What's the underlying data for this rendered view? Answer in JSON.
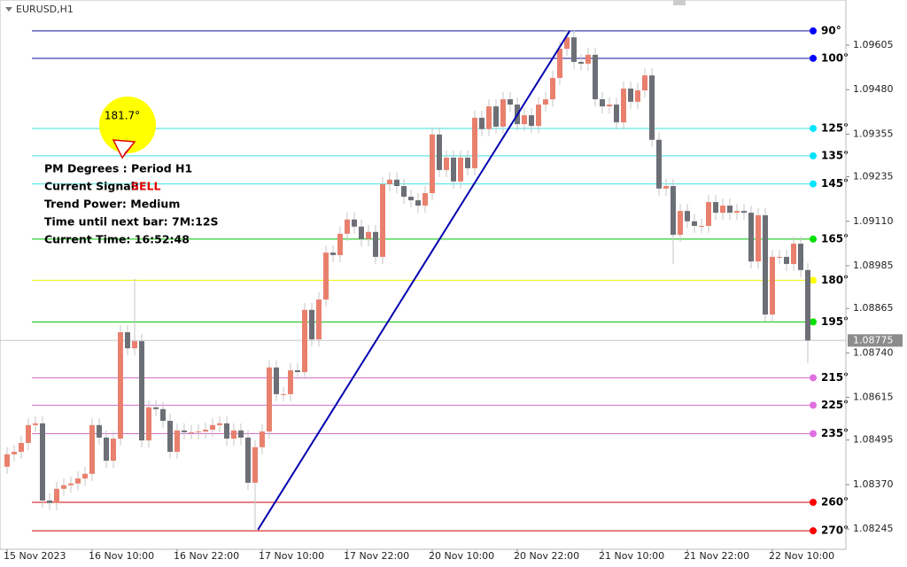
{
  "chart_data": {
    "type": "candlestick",
    "symbol": "EURUSD,H1",
    "categories": [
      "15 Nov 2023",
      null,
      null,
      null,
      null,
      null,
      null,
      null,
      null,
      null,
      null,
      null,
      "16 Nov 10:00",
      null,
      null,
      null,
      null,
      null,
      null,
      null,
      null,
      null,
      null,
      null,
      "16 Nov 22:00",
      null,
      null,
      null,
      null,
      null,
      null,
      null,
      null,
      null,
      null,
      null,
      "17 Nov 10:00",
      null,
      null,
      null,
      null,
      null,
      null,
      null,
      null,
      null,
      null,
      null,
      "17 Nov 22:00",
      null,
      null,
      null,
      null,
      null,
      null,
      null,
      null,
      null,
      null,
      null,
      "20 Nov 10:00",
      null,
      null,
      null,
      null,
      null,
      null,
      null,
      null,
      null,
      null,
      null,
      "20 Nov 22:00",
      null,
      null,
      null,
      null,
      null,
      null,
      null,
      null,
      null,
      null,
      null,
      "21 Nov 10:00",
      null,
      null,
      null,
      null,
      null,
      null,
      null,
      null,
      null,
      null,
      null,
      "21 Nov 22:00",
      null,
      null,
      null,
      null,
      null,
      null,
      null,
      null,
      null,
      null,
      null,
      "22 Nov 10:00",
      null,
      null,
      null,
      null,
      null
    ],
    "open": [
      1.0842,
      1.08455,
      1.08462,
      1.08487,
      1.08537,
      1.08542,
      1.08325,
      1.08318,
      1.08358,
      1.08368,
      1.08373,
      1.08387,
      1.084,
      1.08537,
      1.08502,
      1.08437,
      1.08499,
      1.08798,
      1.08753,
      1.08773,
      1.08494,
      1.08587,
      1.08582,
      1.08549,
      1.08462,
      1.08522,
      1.08517,
      1.08517,
      1.08519,
      1.08524,
      1.08537,
      1.08542,
      1.08499,
      1.08522,
      1.08502,
      1.08375,
      1.08475,
      1.08519,
      1.08699,
      1.08624,
      1.08624,
      1.08691,
      1.08686,
      1.08861,
      1.08778,
      1.0889,
      1.09022,
      1.09015,
      1.09075,
      1.09115,
      1.09095,
      1.0906,
      1.0908,
      1.0901,
      1.09214,
      1.09227,
      1.09209,
      1.09179,
      1.09169,
      1.09154,
      1.09189,
      1.09354,
      1.09254,
      1.09289,
      1.09222,
      1.09289,
      1.09259,
      1.09401,
      1.09369,
      1.09433,
      1.09376,
      1.09453,
      1.09438,
      1.09383,
      1.09408,
      1.09378,
      1.09438,
      1.09453,
      1.09513,
      1.09595,
      1.09627,
      1.09558,
      1.09553,
      1.09578,
      1.09453,
      1.09433,
      1.09438,
      1.09388,
      1.09483,
      1.09446,
      1.09478,
      1.0952,
      1.09339,
      1.09202,
      1.09209,
      1.09072,
      1.09139,
      1.0911,
      1.09097,
      1.09097,
      1.09164,
      1.09134,
      1.09154,
      1.09134,
      1.09139,
      1.09134,
      1.08997,
      1.09127,
      1.08848,
      1.0901,
      1.0901,
      1.0899,
      1.09047,
      1.08973
    ],
    "high": [
      1.08475,
      1.08482,
      1.08507,
      1.08557,
      1.08562,
      1.08562,
      1.08345,
      1.08378,
      1.08388,
      1.08393,
      1.08407,
      1.0842,
      1.08557,
      1.08557,
      1.08522,
      1.08519,
      1.08818,
      1.08818,
      1.08948,
      1.08793,
      1.08607,
      1.08607,
      1.08602,
      1.08569,
      1.08542,
      1.08542,
      1.08537,
      1.08539,
      1.08544,
      1.08557,
      1.08562,
      1.08562,
      1.08542,
      1.08542,
      1.08522,
      1.08495,
      1.08539,
      1.08719,
      1.08719,
      1.08644,
      1.08711,
      1.08711,
      1.08881,
      1.08881,
      1.0891,
      1.09042,
      1.09042,
      1.09095,
      1.09135,
      1.09135,
      1.09115,
      1.091,
      1.091,
      1.09234,
      1.09247,
      1.09247,
      1.09229,
      1.09199,
      1.09189,
      1.09209,
      1.09374,
      1.09374,
      1.09309,
      1.09309,
      1.09309,
      1.09309,
      1.09421,
      1.09421,
      1.09453,
      1.09453,
      1.09473,
      1.09473,
      1.09458,
      1.09428,
      1.09428,
      1.09458,
      1.09473,
      1.09533,
      1.09615,
      1.09647,
      1.09647,
      1.09578,
      1.09598,
      1.09598,
      1.09473,
      1.09458,
      1.09458,
      1.09503,
      1.09503,
      1.09498,
      1.0954,
      1.0954,
      1.09359,
      1.09229,
      1.09229,
      1.09159,
      1.09159,
      1.0913,
      1.09117,
      1.09184,
      1.09184,
      1.09174,
      1.09174,
      1.09159,
      1.09159,
      1.09154,
      1.09147,
      1.09147,
      1.0903,
      1.0903,
      1.0903,
      1.09067,
      1.09067,
      1.08993
    ],
    "low": [
      1.084,
      1.08435,
      1.08442,
      1.08467,
      1.08517,
      1.08305,
      1.08298,
      1.08298,
      1.08338,
      1.08348,
      1.08353,
      1.08367,
      1.0838,
      1.08482,
      1.08417,
      1.08417,
      1.08479,
      1.08733,
      1.08733,
      1.08474,
      1.08474,
      1.08562,
      1.08529,
      1.08442,
      1.08442,
      1.08497,
      1.08497,
      1.08497,
      1.08499,
      1.08504,
      1.08517,
      1.08479,
      1.08479,
      1.08482,
      1.08355,
      1.08243,
      1.08455,
      1.08499,
      1.08604,
      1.08604,
      1.08604,
      1.08666,
      1.08666,
      1.08758,
      1.08758,
      1.0887,
      1.08995,
      1.08995,
      1.09055,
      1.09075,
      1.0904,
      1.0904,
      1.0899,
      1.0899,
      1.09194,
      1.09189,
      1.09159,
      1.09149,
      1.09134,
      1.09134,
      1.09169,
      1.09234,
      1.09234,
      1.09202,
      1.09202,
      1.09239,
      1.09239,
      1.09349,
      1.09349,
      1.09356,
      1.09356,
      1.09418,
      1.09363,
      1.09363,
      1.09358,
      1.09358,
      1.09418,
      1.09433,
      1.09493,
      1.09575,
      1.09538,
      1.09533,
      1.09533,
      1.09433,
      1.09413,
      1.09413,
      1.09368,
      1.09368,
      1.09426,
      1.09426,
      1.09458,
      1.09319,
      1.09182,
      1.09182,
      1.0899,
      1.09052,
      1.0909,
      1.09077,
      1.09077,
      1.09077,
      1.09114,
      1.09114,
      1.09114,
      1.09114,
      1.09114,
      1.08977,
      1.08977,
      1.08828,
      1.08828,
      1.0899,
      1.0897,
      1.0897,
      1.08953,
      1.08711
    ],
    "close": [
      1.08455,
      1.08462,
      1.08487,
      1.08537,
      1.08542,
      1.08325,
      1.08318,
      1.08358,
      1.08368,
      1.08373,
      1.08387,
      1.084,
      1.08537,
      1.08502,
      1.08437,
      1.08499,
      1.08798,
      1.08753,
      1.08773,
      1.08494,
      1.08587,
      1.08582,
      1.08549,
      1.08462,
      1.08522,
      1.08517,
      1.08517,
      1.08519,
      1.08524,
      1.08537,
      1.08542,
      1.08499,
      1.08522,
      1.08502,
      1.08375,
      1.08475,
      1.08519,
      1.08699,
      1.08624,
      1.08624,
      1.08691,
      1.08686,
      1.08861,
      1.08778,
      1.0889,
      1.09022,
      1.09015,
      1.09075,
      1.09115,
      1.09095,
      1.0906,
      1.0908,
      1.0901,
      1.09214,
      1.09227,
      1.09209,
      1.09179,
      1.09169,
      1.09154,
      1.09189,
      1.09354,
      1.09254,
      1.09289,
      1.09222,
      1.09289,
      1.09259,
      1.09401,
      1.09369,
      1.09433,
      1.09376,
      1.09453,
      1.09438,
      1.09383,
      1.09408,
      1.09378,
      1.09438,
      1.09453,
      1.09513,
      1.09595,
      1.09627,
      1.09558,
      1.09553,
      1.09578,
      1.09453,
      1.09433,
      1.09438,
      1.09388,
      1.09483,
      1.09446,
      1.09478,
      1.0952,
      1.09339,
      1.09202,
      1.09209,
      1.09072,
      1.09139,
      1.0911,
      1.09097,
      1.09097,
      1.09164,
      1.09134,
      1.09154,
      1.09134,
      1.09139,
      1.09134,
      1.08997,
      1.09127,
      1.08848,
      1.0901,
      1.0901,
      1.0899,
      1.09047,
      1.08973,
      1.08775
    ],
    "up_color": "#e9806e",
    "down_color": "#6c6f76",
    "wick_color": "#c4c4c4",
    "ylim": [
      1.08188,
      1.09732
    ],
    "yticks": [
      1.09605,
      {
        "value": 1.0948,
        "label": "1.09480"
      },
      1.09355,
      1.09235,
      {
        "value": 1.0911,
        "label": "1.09110"
      },
      1.08985,
      1.08865,
      {
        "value": 1.0874,
        "label": "1.08740"
      },
      1.08615,
      1.08495,
      {
        "value": 1.0837,
        "label": "1.08370"
      },
      1.08245
    ],
    "current_price": 1.08775,
    "levels": [
      {
        "label": "90°",
        "value": 1.09645,
        "color": "#10109a",
        "dot": "#0000ff"
      },
      {
        "label": "100°",
        "value": 1.09568,
        "color": "#10109a",
        "dot": "#0000ff"
      },
      {
        "label": "125°",
        "value": 1.09371,
        "color": "#3fe0e0",
        "dot": "#00e5ff"
      },
      {
        "label": "135°",
        "value": 1.09294,
        "color": "#3fe0e0",
        "dot": "#00e5ff"
      },
      {
        "label": "145°",
        "value": 1.09215,
        "color": "#3fe0e0",
        "dot": "#00e5ff"
      },
      {
        "label": "165°",
        "value": 1.0906,
        "color": "#00c000",
        "dot": "#00e000"
      },
      {
        "label": "180°",
        "value": 1.08944,
        "color": "#f0f000",
        "dot": "#ffff00"
      },
      {
        "label": "195°",
        "value": 1.08827,
        "color": "#00c000",
        "dot": "#00e000"
      },
      {
        "label": "215°",
        "value": 1.0867,
        "color": "#d070d0",
        "dot": "#e070e0"
      },
      {
        "label": "225°",
        "value": 1.08593,
        "color": "#d070d0",
        "dot": "#e070e0"
      },
      {
        "label": "235°",
        "value": 1.08513,
        "color": "#d070d0",
        "dot": "#e070e0"
      },
      {
        "label": "260°",
        "value": 1.0832,
        "color": "#d00000",
        "dot": "#ff0000"
      },
      {
        "label": "270°",
        "value": 1.0824,
        "color": "#d00000",
        "dot": "#ff0000"
      }
    ],
    "trend_line": {
      "color": "#0000b0",
      "x": [
        35.4,
        79.4
      ],
      "values": [
        1.08243,
        1.09645
      ]
    },
    "indicator": {
      "angle": "181.7°",
      "lines": [
        "PM Degrees : Period H1",
        "Current Signal:",
        "Trend Power: Medium",
        "Time until next bar: 7M:12S",
        "Current Time: 16:52:48"
      ],
      "signal": "SELL"
    }
  }
}
